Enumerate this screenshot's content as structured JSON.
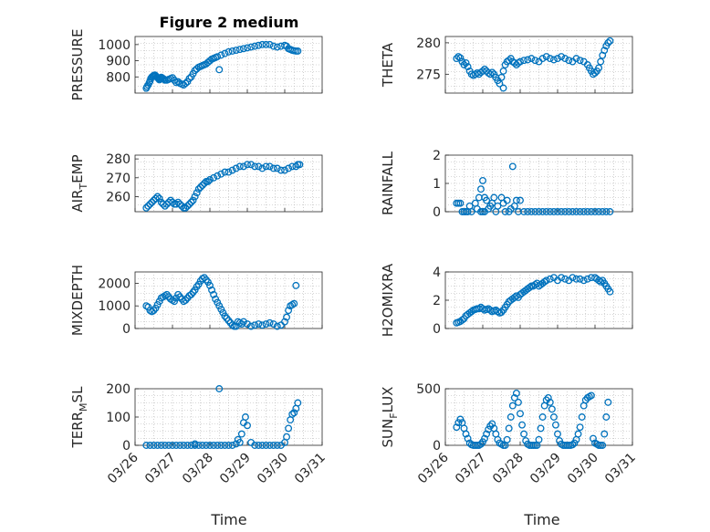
{
  "figure_title": "Figure 2 medium",
  "x_axis_label": "Time",
  "marker_color": "#0072BD",
  "chart_data": [
    {
      "type": "scatter",
      "ylabel": "PRESSURE",
      "ylabel_main": "PRESSURE",
      "ylabel_sub": "",
      "xlim": [
        0,
        5
      ],
      "ylim": [
        700,
        1050
      ],
      "yticks": [
        800,
        900,
        1000
      ],
      "ytick_labels": [
        "800",
        "900",
        "1000"
      ],
      "xticks": [
        0,
        1,
        2,
        3,
        4,
        5
      ],
      "xtick_labels": [
        "03/26",
        "03/27",
        "03/28",
        "03/29",
        "03/30",
        "03/31"
      ],
      "show_xtick_labels": false,
      "x": [
        0.3,
        0.32,
        0.35,
        0.38,
        0.4,
        0.42,
        0.45,
        0.48,
        0.5,
        0.53,
        0.55,
        0.58,
        0.6,
        0.63,
        0.65,
        0.68,
        0.7,
        0.72,
        0.75,
        0.78,
        0.8,
        0.85,
        0.9,
        0.95,
        1.0,
        1.05,
        1.1,
        1.15,
        1.2,
        1.25,
        1.3,
        1.35,
        1.4,
        1.45,
        1.5,
        1.55,
        1.6,
        1.65,
        1.7,
        1.75,
        1.8,
        1.85,
        1.9,
        1.95,
        2.0,
        2.05,
        2.1,
        2.15,
        2.2,
        2.3,
        2.4,
        2.5,
        2.6,
        2.7,
        2.8,
        2.9,
        3.0,
        3.1,
        3.2,
        3.3,
        3.4,
        3.5,
        3.6,
        3.7,
        3.8,
        3.9,
        4.0,
        4.05,
        4.1,
        4.15,
        4.2,
        4.25,
        4.3,
        4.35,
        2.25
      ],
      "y": [
        730,
        740,
        750,
        765,
        775,
        790,
        800,
        805,
        810,
        812,
        808,
        800,
        795,
        788,
        782,
        790,
        798,
        795,
        790,
        785,
        780,
        780,
        785,
        790,
        795,
        780,
        765,
        770,
        760,
        755,
        750,
        760,
        770,
        790,
        800,
        820,
        840,
        850,
        860,
        865,
        870,
        875,
        880,
        890,
        900,
        910,
        915,
        920,
        925,
        935,
        945,
        955,
        960,
        965,
        970,
        975,
        980,
        985,
        990,
        995,
        1000,
        1000,
        1000,
        990,
        985,
        990,
        995,
        990,
        975,
        970,
        965,
        962,
        960,
        960,
        845
      ]
    },
    {
      "type": "scatter",
      "ylabel": "THETA",
      "ylabel_main": "THETA",
      "ylabel_sub": "",
      "xlim": [
        0,
        5
      ],
      "ylim": [
        272,
        281
      ],
      "yticks": [
        275,
        280
      ],
      "ytick_labels": [
        "275",
        "280"
      ],
      "xticks": [
        0,
        1,
        2,
        3,
        4,
        5
      ],
      "xtick_labels": [
        "03/26",
        "03/27",
        "03/28",
        "03/29",
        "03/30",
        "03/31"
      ],
      "show_xtick_labels": false,
      "x": [
        0.3,
        0.35,
        0.4,
        0.45,
        0.5,
        0.55,
        0.6,
        0.65,
        0.7,
        0.75,
        0.8,
        0.85,
        0.9,
        0.95,
        1.0,
        1.05,
        1.1,
        1.15,
        1.2,
        1.25,
        1.3,
        1.35,
        1.4,
        1.45,
        1.5,
        1.55,
        1.6,
        1.65,
        1.7,
        1.75,
        1.8,
        1.85,
        1.9,
        1.95,
        2.0,
        2.1,
        2.2,
        2.3,
        2.4,
        2.5,
        2.6,
        2.7,
        2.8,
        2.9,
        3.0,
        3.1,
        3.2,
        3.3,
        3.4,
        3.5,
        3.6,
        3.7,
        3.8,
        3.85,
        3.9,
        3.95,
        4.0,
        4.05,
        4.1,
        4.15,
        4.2,
        4.25,
        4.3,
        4.35,
        4.4,
        1.55
      ],
      "y": [
        277.5,
        277.8,
        277.6,
        277.0,
        276.5,
        276.8,
        276.2,
        275.5,
        275.0,
        274.8,
        275.0,
        275.2,
        275.0,
        275.3,
        275.5,
        275.8,
        275.5,
        275.2,
        275.0,
        275.3,
        275.0,
        274.5,
        274.0,
        273.5,
        274.5,
        275.5,
        276.5,
        277.0,
        277.2,
        277.5,
        277.0,
        276.8,
        276.5,
        276.8,
        277.0,
        277.2,
        277.3,
        277.5,
        277.2,
        277.0,
        277.5,
        277.8,
        277.5,
        277.3,
        277.5,
        277.8,
        277.5,
        277.2,
        277.0,
        277.5,
        277.2,
        277.0,
        276.5,
        276.0,
        275.5,
        275.0,
        275.2,
        275.5,
        276.0,
        277.0,
        278.0,
        278.8,
        279.5,
        280.0,
        280.3,
        272.8
      ]
    },
    {
      "type": "scatter",
      "ylabel": "AIR_TEMP",
      "ylabel_main": "AIR",
      "ylabel_sub": "T",
      "ylabel_rest": "EMP",
      "xlim": [
        0,
        5
      ],
      "ylim": [
        252,
        282
      ],
      "yticks": [
        260,
        270,
        280
      ],
      "ytick_labels": [
        "260",
        "270",
        "280"
      ],
      "xticks": [
        0,
        1,
        2,
        3,
        4,
        5
      ],
      "xtick_labels": [
        "03/26",
        "03/27",
        "03/28",
        "03/29",
        "03/30",
        "03/31"
      ],
      "show_xtick_labels": false,
      "x": [
        0.3,
        0.35,
        0.4,
        0.45,
        0.5,
        0.55,
        0.6,
        0.65,
        0.7,
        0.75,
        0.8,
        0.85,
        0.9,
        0.95,
        1.0,
        1.05,
        1.1,
        1.15,
        1.2,
        1.25,
        1.3,
        1.35,
        1.4,
        1.45,
        1.5,
        1.55,
        1.6,
        1.65,
        1.7,
        1.75,
        1.8,
        1.85,
        1.9,
        1.95,
        2.0,
        2.1,
        2.2,
        2.3,
        2.4,
        2.5,
        2.6,
        2.7,
        2.8,
        2.9,
        3.0,
        3.1,
        3.2,
        3.3,
        3.4,
        3.5,
        3.6,
        3.7,
        3.8,
        3.9,
        4.0,
        4.1,
        4.2,
        4.3,
        4.35,
        4.4
      ],
      "y": [
        254,
        255,
        256,
        257,
        258,
        259,
        260,
        259,
        257,
        256,
        255,
        256,
        257,
        258,
        257,
        256,
        256,
        257,
        256,
        255,
        254,
        254,
        255,
        256,
        257,
        258,
        260,
        262,
        264,
        265,
        266,
        267,
        268,
        268,
        269,
        270,
        271,
        272,
        273,
        273,
        274,
        275,
        276,
        276,
        277,
        277,
        276,
        276,
        275,
        276,
        276,
        275,
        275,
        274,
        274,
        275,
        276,
        276,
        277,
        277
      ]
    },
    {
      "type": "scatter",
      "ylabel": "RAINFALL",
      "ylabel_main": "RAINFALL",
      "ylabel_sub": "",
      "xlim": [
        0,
        5
      ],
      "ylim": [
        0,
        2
      ],
      "yticks": [
        0,
        1,
        2
      ],
      "ytick_labels": [
        "0",
        "1",
        "2"
      ],
      "xticks": [
        0,
        1,
        2,
        3,
        4,
        5
      ],
      "xtick_labels": [
        "03/26",
        "03/27",
        "03/28",
        "03/29",
        "03/30",
        "03/31"
      ],
      "show_xtick_labels": false,
      "x": [
        0.3,
        0.35,
        0.4,
        0.45,
        0.5,
        0.55,
        0.6,
        0.65,
        0.7,
        0.8,
        0.85,
        0.9,
        0.95,
        1.0,
        1.05,
        1.1,
        1.15,
        1.2,
        1.25,
        1.3,
        1.35,
        1.4,
        1.5,
        1.55,
        1.6,
        1.65,
        1.7,
        1.75,
        1.8,
        1.85,
        1.9,
        1.95,
        2.0,
        2.1,
        2.2,
        2.3,
        2.4,
        2.5,
        2.6,
        2.7,
        2.8,
        2.9,
        3.0,
        3.1,
        3.2,
        3.3,
        3.4,
        3.5,
        3.6,
        3.7,
        3.8,
        3.9,
        4.0,
        4.1,
        4.2,
        4.3,
        4.4,
        1.0,
        1.05,
        0.95
      ],
      "y": [
        0.3,
        0.3,
        0.3,
        0.0,
        0.0,
        0.0,
        0.0,
        0.2,
        0.0,
        0.3,
        0.1,
        0.5,
        0.8,
        1.1,
        0.5,
        0.4,
        0.1,
        0.2,
        0.3,
        0.5,
        0.0,
        0.2,
        0.5,
        0.3,
        0.0,
        0.4,
        0.0,
        0.1,
        1.6,
        0.2,
        0.4,
        0.0,
        0.4,
        0.0,
        0.0,
        0.0,
        0.0,
        0.0,
        0.0,
        0.0,
        0.0,
        0.0,
        0.0,
        0.0,
        0.0,
        0.0,
        0.0,
        0.0,
        0.0,
        0.0,
        0.0,
        0.0,
        0.0,
        0.0,
        0.0,
        0.0,
        0.0,
        0.0,
        0.0,
        0.0
      ]
    },
    {
      "type": "scatter",
      "ylabel": "MIXDEPTH",
      "ylabel_main": "MIXDEPTH",
      "ylabel_sub": "",
      "xlim": [
        0,
        5
      ],
      "ylim": [
        0,
        2500
      ],
      "yticks": [
        0,
        1000,
        2000
      ],
      "ytick_labels": [
        "0",
        "1000",
        "2000"
      ],
      "xticks": [
        0,
        1,
        2,
        3,
        4,
        5
      ],
      "xtick_labels": [
        "03/26",
        "03/27",
        "03/28",
        "03/29",
        "03/30",
        "03/31"
      ],
      "show_xtick_labels": false,
      "x": [
        0.3,
        0.35,
        0.4,
        0.45,
        0.5,
        0.55,
        0.6,
        0.65,
        0.7,
        0.75,
        0.8,
        0.85,
        0.9,
        0.95,
        1.0,
        1.05,
        1.1,
        1.15,
        1.2,
        1.25,
        1.3,
        1.35,
        1.4,
        1.45,
        1.5,
        1.55,
        1.6,
        1.65,
        1.7,
        1.75,
        1.8,
        1.85,
        1.9,
        1.95,
        2.0,
        2.05,
        2.1,
        2.15,
        2.2,
        2.25,
        2.3,
        2.35,
        2.4,
        2.45,
        2.5,
        2.55,
        2.6,
        2.65,
        2.7,
        2.75,
        2.8,
        2.85,
        2.9,
        3.0,
        3.1,
        3.2,
        3.3,
        3.4,
        3.5,
        3.6,
        3.7,
        3.8,
        3.9,
        4.0,
        4.05,
        4.1,
        4.15,
        4.2,
        4.25,
        4.3
      ],
      "y": [
        1000,
        950,
        800,
        750,
        800,
        900,
        1050,
        1200,
        1350,
        1400,
        1450,
        1500,
        1400,
        1300,
        1250,
        1200,
        1350,
        1500,
        1400,
        1300,
        1200,
        1250,
        1350,
        1450,
        1500,
        1600,
        1700,
        1850,
        1950,
        2100,
        2200,
        2250,
        2150,
        2050,
        1900,
        1700,
        1500,
        1300,
        1150,
        1000,
        850,
        700,
        550,
        450,
        350,
        250,
        150,
        100,
        100,
        300,
        250,
        200,
        300,
        200,
        100,
        150,
        200,
        150,
        200,
        250,
        200,
        100,
        150,
        300,
        500,
        800,
        1000,
        1050,
        1100,
        1900
      ]
    },
    {
      "type": "scatter",
      "ylabel": "H2OMIXRA",
      "ylabel_main": "H2OMIXRA",
      "ylabel_sub": "",
      "xlim": [
        0,
        5
      ],
      "ylim": [
        0,
        4
      ],
      "yticks": [
        0,
        2,
        4
      ],
      "ytick_labels": [
        "0",
        "2",
        "4"
      ],
      "xticks": [
        0,
        1,
        2,
        3,
        4,
        5
      ],
      "xtick_labels": [
        "03/26",
        "03/27",
        "03/28",
        "03/29",
        "03/30",
        "03/31"
      ],
      "show_xtick_labels": false,
      "x": [
        0.3,
        0.35,
        0.4,
        0.45,
        0.5,
        0.55,
        0.6,
        0.65,
        0.7,
        0.75,
        0.8,
        0.85,
        0.9,
        0.95,
        1.0,
        1.05,
        1.1,
        1.15,
        1.2,
        1.25,
        1.3,
        1.35,
        1.4,
        1.45,
        1.5,
        1.55,
        1.6,
        1.65,
        1.7,
        1.75,
        1.8,
        1.85,
        1.9,
        1.95,
        2.0,
        2.05,
        2.1,
        2.15,
        2.2,
        2.25,
        2.3,
        2.35,
        2.4,
        2.45,
        2.5,
        2.55,
        2.6,
        2.65,
        2.7,
        2.8,
        2.9,
        3.0,
        3.1,
        3.2,
        3.3,
        3.4,
        3.5,
        3.6,
        3.7,
        3.8,
        3.9,
        4.0,
        4.05,
        4.1,
        4.15,
        4.2,
        4.25,
        4.3,
        4.35,
        4.4
      ],
      "y": [
        0.4,
        0.45,
        0.5,
        0.6,
        0.7,
        0.9,
        1.0,
        1.1,
        1.2,
        1.3,
        1.35,
        1.4,
        1.4,
        1.5,
        1.4,
        1.3,
        1.35,
        1.4,
        1.3,
        1.2,
        1.25,
        1.3,
        1.2,
        1.1,
        1.15,
        1.3,
        1.5,
        1.7,
        1.9,
        2.0,
        2.1,
        2.2,
        2.3,
        2.2,
        2.4,
        2.5,
        2.6,
        2.7,
        2.8,
        2.9,
        3.0,
        3.0,
        3.1,
        3.2,
        3.0,
        3.1,
        3.2,
        3.3,
        3.4,
        3.5,
        3.6,
        3.4,
        3.6,
        3.5,
        3.4,
        3.6,
        3.5,
        3.5,
        3.4,
        3.5,
        3.6,
        3.6,
        3.5,
        3.4,
        3.3,
        3.4,
        3.2,
        3.0,
        2.8,
        2.6
      ]
    },
    {
      "type": "scatter",
      "ylabel": "TERR_MSL",
      "ylabel_main": "TERR",
      "ylabel_sub": "M",
      "ylabel_rest": "SL",
      "xlim": [
        0,
        5
      ],
      "ylim": [
        0,
        200
      ],
      "yticks": [
        0,
        100,
        200
      ],
      "ytick_labels": [
        "0",
        "100",
        "200"
      ],
      "xticks": [
        0,
        1,
        2,
        3,
        4,
        5
      ],
      "xtick_labels": [
        "03/26",
        "03/27",
        "03/28",
        "03/29",
        "03/30",
        "03/31"
      ],
      "show_xtick_labels": true,
      "x": [
        0.3,
        0.4,
        0.5,
        0.6,
        0.7,
        0.8,
        0.9,
        1.0,
        1.1,
        1.2,
        1.3,
        1.4,
        1.5,
        1.6,
        1.7,
        1.8,
        1.9,
        2.0,
        2.1,
        2.2,
        2.3,
        2.4,
        2.5,
        2.6,
        2.7,
        2.75,
        2.8,
        2.85,
        2.9,
        2.95,
        3.0,
        3.1,
        3.2,
        3.3,
        3.4,
        3.5,
        3.6,
        3.7,
        3.8,
        3.9,
        4.0,
        4.05,
        4.1,
        4.15,
        4.2,
        4.25,
        4.3,
        4.35,
        2.25,
        1.6
      ],
      "y": [
        0,
        0,
        0,
        0,
        0,
        0,
        0,
        0,
        0,
        0,
        0,
        0,
        0,
        0,
        0,
        0,
        0,
        0,
        0,
        0,
        0,
        0,
        0,
        0,
        5,
        20,
        10,
        40,
        80,
        100,
        70,
        10,
        0,
        0,
        0,
        0,
        0,
        0,
        0,
        0,
        10,
        30,
        60,
        90,
        110,
        115,
        130,
        150,
        200,
        5
      ]
    },
    {
      "type": "scatter",
      "ylabel": "SUN_FLUX",
      "ylabel_main": "SUN",
      "ylabel_sub": "F",
      "ylabel_rest": "LUX",
      "xlim": [
        0,
        5
      ],
      "ylim": [
        0,
        500
      ],
      "yticks": [
        0,
        500
      ],
      "ytick_labels": [
        "0",
        "500"
      ],
      "xticks": [
        0,
        1,
        2,
        3,
        4,
        5
      ],
      "xtick_labels": [
        "03/26",
        "03/27",
        "03/28",
        "03/29",
        "03/30",
        "03/31"
      ],
      "show_xtick_labels": true,
      "x": [
        0.3,
        0.35,
        0.4,
        0.45,
        0.5,
        0.55,
        0.6,
        0.65,
        0.7,
        0.75,
        0.8,
        0.85,
        0.9,
        0.95,
        1.0,
        1.05,
        1.1,
        1.15,
        1.2,
        1.25,
        1.3,
        1.35,
        1.4,
        1.45,
        1.5,
        1.55,
        1.6,
        1.65,
        1.7,
        1.75,
        1.8,
        1.85,
        1.9,
        1.95,
        2.0,
        2.05,
        2.1,
        2.15,
        2.2,
        2.25,
        2.3,
        2.35,
        2.4,
        2.45,
        2.5,
        2.55,
        2.6,
        2.65,
        2.7,
        2.75,
        2.8,
        2.85,
        2.9,
        2.95,
        3.0,
        3.05,
        3.1,
        3.15,
        3.2,
        3.25,
        3.3,
        3.35,
        3.4,
        3.45,
        3.5,
        3.55,
        3.6,
        3.65,
        3.7,
        3.75,
        3.8,
        3.85,
        3.9,
        3.95,
        4.0,
        4.05,
        4.1,
        4.15,
        4.2,
        4.25,
        4.3,
        4.35
      ],
      "y": [
        160,
        200,
        230,
        200,
        150,
        100,
        60,
        20,
        5,
        0,
        0,
        0,
        0,
        10,
        30,
        60,
        100,
        140,
        170,
        190,
        150,
        100,
        50,
        20,
        10,
        0,
        0,
        50,
        150,
        250,
        350,
        420,
        460,
        380,
        280,
        180,
        100,
        40,
        10,
        0,
        0,
        0,
        0,
        0,
        50,
        150,
        250,
        350,
        400,
        420,
        380,
        320,
        250,
        180,
        100,
        40,
        10,
        0,
        0,
        0,
        0,
        0,
        5,
        20,
        50,
        100,
        160,
        250,
        350,
        400,
        420,
        430,
        440,
        60,
        20,
        10,
        0,
        0,
        0,
        100,
        250,
        380
      ]
    }
  ]
}
